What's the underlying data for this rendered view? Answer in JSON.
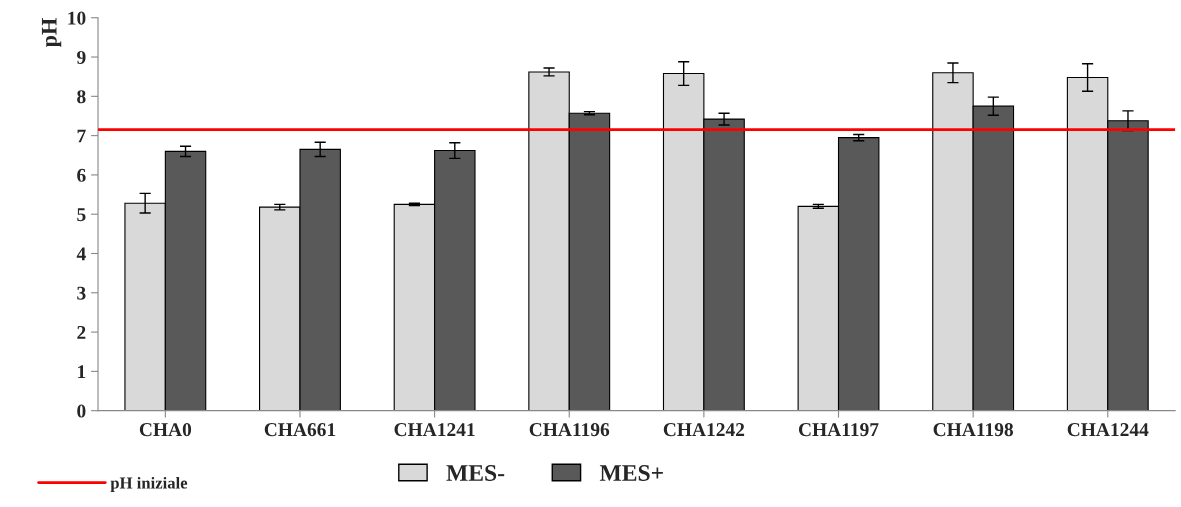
{
  "chart_data": {
    "type": "bar",
    "ylabel": "pH",
    "categories": [
      "CHA0",
      "CHA661",
      "CHA1241",
      "CHA1196",
      "CHA1242",
      "CHA1197",
      "CHA1198",
      "CHA1244"
    ],
    "series": [
      {
        "name": "MES-",
        "color": "#d9d9d9",
        "values": [
          5.28,
          5.18,
          5.25,
          8.62,
          8.58,
          5.2,
          8.6,
          8.48
        ],
        "errors": [
          0.25,
          0.07,
          0.03,
          0.1,
          0.3,
          0.05,
          0.25,
          0.35
        ]
      },
      {
        "name": "MES+",
        "color": "#595959",
        "values": [
          6.6,
          6.65,
          6.62,
          7.57,
          7.42,
          6.95,
          7.75,
          7.38
        ],
        "errors": [
          0.13,
          0.18,
          0.2,
          0.04,
          0.15,
          0.08,
          0.23,
          0.25
        ]
      }
    ],
    "ylim": [
      0,
      10
    ],
    "yticks": [
      0,
      1,
      2,
      3,
      4,
      5,
      6,
      7,
      8,
      9,
      10
    ],
    "ref_lines": [
      {
        "axis": "y",
        "value": 7.15,
        "label": "pH iniziale",
        "color": "#ff0000"
      }
    ],
    "grid": false,
    "legend": "bottom"
  }
}
